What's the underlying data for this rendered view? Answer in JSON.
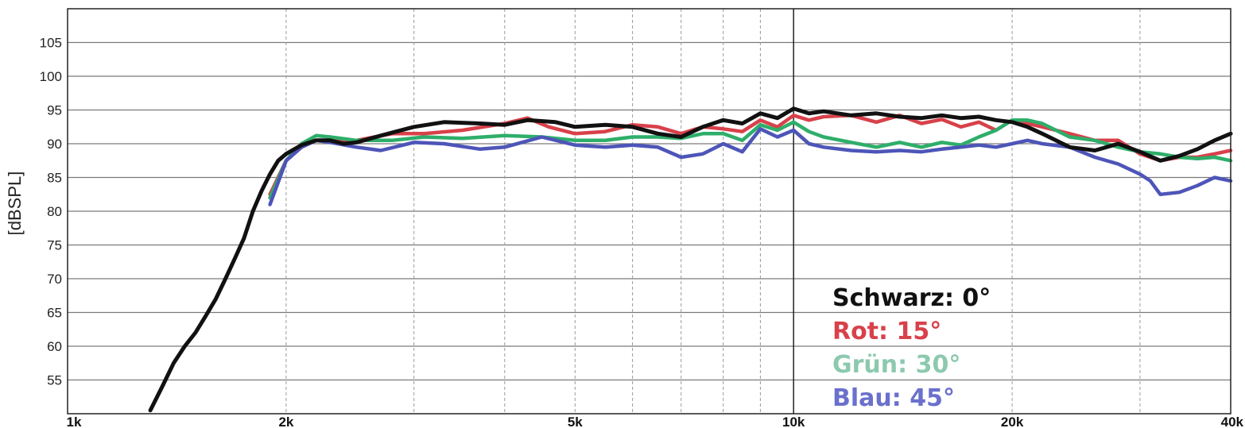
{
  "chart_data": {
    "type": "line",
    "title": "",
    "xlabel": "",
    "ylabel": "[dBSPL]",
    "xscale": "log",
    "xlim": [
      1000,
      40000
    ],
    "ylim": [
      50,
      110
    ],
    "grid": true,
    "x_ticks": [
      {
        "value": 1000,
        "label": "1k"
      },
      {
        "value": 2000,
        "label": "2k"
      },
      {
        "value": 5000,
        "label": "5k"
      },
      {
        "value": 10000,
        "label": "10k"
      },
      {
        "value": 20000,
        "label": "20k"
      },
      {
        "value": 40000,
        "label": "40k"
      }
    ],
    "y_ticks": [
      55,
      60,
      65,
      70,
      75,
      80,
      85,
      90,
      95,
      100,
      105
    ],
    "legend_placement": "bottom-center-right",
    "series": [
      {
        "name": "Rot: 15°",
        "color": "#d8414a",
        "x": [
          1900,
          2000,
          2100,
          2200,
          2300,
          2500,
          2800,
          3100,
          3500,
          4000,
          4300,
          4600,
          5000,
          5500,
          6000,
          6500,
          7000,
          7500,
          8000,
          8500,
          9000,
          9500,
          10000,
          10500,
          11000,
          12000,
          13000,
          14000,
          15000,
          16000,
          17000,
          18000,
          19000,
          20000,
          21000,
          22000,
          24000,
          26000,
          28000,
          30000,
          32000,
          34000,
          36000,
          38000,
          40000
        ],
        "y": [
          82.5,
          87.5,
          89.5,
          90.5,
          90.5,
          90.5,
          91.5,
          91.5,
          92,
          93,
          93.8,
          92.5,
          91.5,
          91.8,
          92.8,
          92.5,
          91.5,
          92.5,
          92.2,
          91.8,
          93.5,
          92.5,
          94.2,
          93.5,
          94,
          94.2,
          93.2,
          94.2,
          93,
          93.6,
          92.5,
          93.2,
          92,
          93.5,
          93,
          92.5,
          91.5,
          90.5,
          90.5,
          88.5,
          87.5,
          88,
          88,
          88.5,
          89
        ]
      },
      {
        "name": "Grün: 30°",
        "color": "#2eae6a",
        "x": [
          1900,
          2000,
          2100,
          2200,
          2300,
          2500,
          2800,
          3100,
          3500,
          4000,
          4500,
          5000,
          5500,
          6000,
          6500,
          7000,
          7500,
          8000,
          8500,
          9000,
          9500,
          10000,
          10500,
          11000,
          12000,
          13000,
          14000,
          15000,
          16000,
          17000,
          18000,
          19000,
          20000,
          21000,
          22000,
          24000,
          26000,
          28000,
          30000,
          32000,
          34000,
          36000,
          38000,
          40000
        ],
        "y": [
          82,
          87.5,
          90,
          91.2,
          91,
          90.5,
          90.5,
          91,
          90.8,
          91.2,
          91,
          90.5,
          90.5,
          91,
          91,
          90.8,
          91.5,
          91.5,
          90.5,
          92.8,
          92,
          93.2,
          91.8,
          91,
          90.2,
          89.5,
          90.2,
          89.5,
          90.2,
          89.8,
          91,
          92,
          93.5,
          93.5,
          93,
          91,
          90.5,
          89.5,
          88.8,
          88.5,
          88,
          87.8,
          88,
          87.5
        ]
      },
      {
        "name": "Blau: 45°",
        "color": "#4d55b8",
        "x": [
          1900,
          2000,
          2100,
          2200,
          2300,
          2500,
          2700,
          3000,
          3300,
          3700,
          4000,
          4500,
          5000,
          5500,
          6000,
          6500,
          7000,
          7500,
          8000,
          8500,
          9000,
          9500,
          10000,
          10500,
          11000,
          12000,
          13000,
          14000,
          15000,
          16000,
          17000,
          18000,
          19000,
          20000,
          21000,
          22000,
          24000,
          26000,
          28000,
          30000,
          31000,
          32000,
          34000,
          36000,
          38000,
          40000
        ],
        "y": [
          81,
          87.5,
          89.5,
          90.5,
          90.2,
          89.5,
          89,
          90.2,
          90,
          89.2,
          89.5,
          91,
          89.8,
          89.5,
          89.8,
          89.5,
          88,
          88.5,
          90,
          88.8,
          92.2,
          91,
          92,
          90,
          89.5,
          89,
          88.8,
          89,
          88.8,
          89.2,
          89.5,
          89.8,
          89.5,
          90,
          90.5,
          90,
          89.5,
          88,
          87,
          85.5,
          84.5,
          82.5,
          82.8,
          83.8,
          85,
          84.5
        ]
      },
      {
        "name": "Schwarz: 0°",
        "color": "#111111",
        "x": [
          1300,
          1350,
          1400,
          1450,
          1500,
          1550,
          1600,
          1650,
          1700,
          1750,
          1800,
          1850,
          1900,
          1950,
          2000,
          2100,
          2200,
          2300,
          2400,
          2500,
          2700,
          3000,
          3300,
          3700,
          4000,
          4300,
          4700,
          5000,
          5500,
          6000,
          6500,
          7000,
          7500,
          8000,
          8500,
          9000,
          9500,
          10000,
          10500,
          11000,
          12000,
          13000,
          14000,
          15000,
          16000,
          17000,
          18000,
          19000,
          20000,
          21000,
          22000,
          24000,
          26000,
          28000,
          30000,
          32000,
          34000,
          36000,
          38000,
          40000
        ],
        "y": [
          50.5,
          54,
          57.5,
          60,
          62,
          64.5,
          67,
          70,
          73,
          76,
          80,
          83,
          85.5,
          87.5,
          88.5,
          89.8,
          90.5,
          90.5,
          90,
          90.2,
          91.2,
          92.5,
          93.2,
          93,
          92.8,
          93.5,
          93.2,
          92.5,
          92.8,
          92.5,
          91.5,
          91,
          92.5,
          93.5,
          93,
          94.5,
          93.8,
          95.2,
          94.5,
          94.8,
          94.2,
          94.5,
          94,
          93.8,
          94.2,
          93.8,
          94,
          93.5,
          93.2,
          92.5,
          91.5,
          89.5,
          89,
          90,
          88.8,
          87.5,
          88.2,
          89.2,
          90.5,
          91.5
        ]
      }
    ]
  },
  "legend": [
    {
      "label": "Schwarz: 0°",
      "color": "#111111"
    },
    {
      "label": "Rot: 15°",
      "color": "#d8414a"
    },
    {
      "label": "Grün: 30°",
      "color": "#8cc9ae"
    },
    {
      "label": "Blau: 45°",
      "color": "#6a70cc"
    }
  ]
}
